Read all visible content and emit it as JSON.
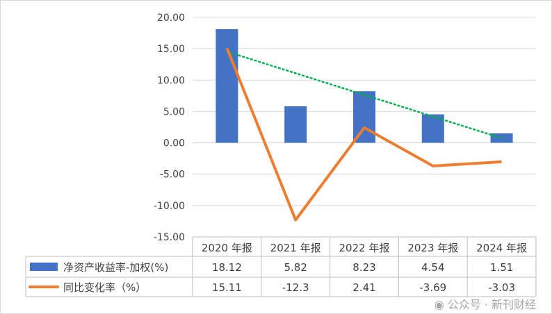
{
  "chart_data": {
    "type": "bar+line",
    "categories": [
      "2020 年报",
      "2021 年报",
      "2022 年报",
      "2023 年报",
      "2024 年报"
    ],
    "series": [
      {
        "name": "净资产收益率-加权(%)",
        "type": "bar",
        "color": "#4472C4",
        "values": [
          18.12,
          5.82,
          8.23,
          4.54,
          1.51
        ],
        "labels": [
          "18.12",
          "5.82",
          "8.23",
          "4.54",
          "1.51"
        ]
      },
      {
        "name": "同比变化率（%）",
        "type": "line",
        "color": "#ED7D31",
        "values": [
          15.11,
          -12.3,
          2.41,
          -3.69,
          -3.03
        ],
        "labels": [
          "15.11",
          "-12.3",
          "2.41",
          "-3.69",
          "-3.03"
        ]
      }
    ],
    "trendline": {
      "of": "净资产收益率-加权(%)",
      "type": "linear",
      "style": "dotted",
      "color": "#00B050"
    },
    "ylim": [
      -15,
      20
    ],
    "yticks": [
      "20.00",
      "15.00",
      "10.00",
      "5.00",
      "0.00",
      "-5.00",
      "-10.00",
      "-15.00"
    ],
    "grid": true,
    "legend": "data-table-left"
  },
  "watermark": "公众号 · 新刊财经"
}
